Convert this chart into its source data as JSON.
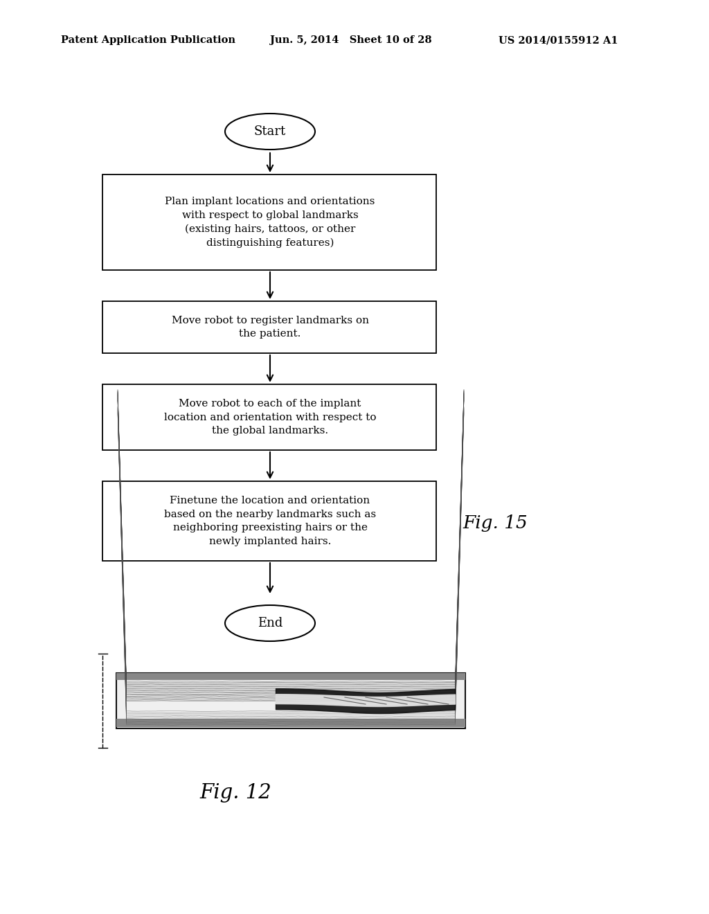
{
  "header_left": "Patent Application Publication",
  "header_mid": "Jun. 5, 2014   Sheet 10 of 28",
  "header_right": "US 2014/0155912 A1",
  "flowchart": {
    "start_label": "Start",
    "boxes": [
      "Plan implant locations and orientations\nwith respect to global landmarks\n(existing hairs, tattoos, or other\ndistinguishing features)",
      "Move robot to register landmarks on\nthe patient.",
      "Move robot to each of the implant\nlocation and orientation with respect to\nthe global landmarks.",
      "Finetune the location and orientation\nbased on the nearby landmarks such as\nneighboring preexisting hairs or the\nnewly implanted hairs."
    ],
    "end_label": "End"
  },
  "fig15_label": "Fig. 15",
  "fig12_label": "Fig. 12",
  "bg_color": "#ffffff",
  "text_color": "#000000",
  "box_edge_color": "#000000"
}
